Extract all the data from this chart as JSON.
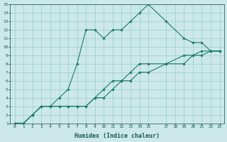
{
  "xlabel": "Humidex (Indice chaleur)",
  "bg_color": "#cce8e8",
  "grid_color": "#99cccc",
  "line_color": "#1a7a6a",
  "xlim": [
    -0.5,
    23.5
  ],
  "ylim": [
    1,
    15
  ],
  "xticks": [
    0,
    1,
    2,
    3,
    4,
    5,
    6,
    7,
    8,
    9,
    10,
    11,
    12,
    13,
    14,
    15,
    17,
    18,
    19,
    20,
    21,
    22,
    23
  ],
  "yticks": [
    1,
    2,
    3,
    4,
    5,
    6,
    7,
    8,
    9,
    10,
    11,
    12,
    13,
    14,
    15
  ],
  "line1_x": [
    0,
    1,
    2,
    3,
    4,
    5,
    6,
    7,
    8,
    9,
    10,
    11,
    12,
    13,
    14,
    15,
    17,
    19,
    20,
    21,
    22,
    23
  ],
  "line1_y": [
    1,
    1,
    2,
    3,
    3,
    4,
    5,
    8,
    12,
    12,
    11,
    12,
    12,
    13,
    14,
    15,
    13,
    11,
    10.5,
    10.5,
    9.5,
    9.5
  ],
  "line2_x": [
    0,
    1,
    2,
    3,
    4,
    5,
    6,
    7,
    8,
    9,
    10,
    11,
    12,
    13,
    14,
    15,
    17,
    19,
    20,
    21,
    22,
    23
  ],
  "line2_y": [
    1,
    1,
    2,
    3,
    3,
    3,
    3,
    3,
    3,
    4,
    5,
    6,
    6,
    7,
    8,
    8,
    8,
    9,
    9,
    9.5,
    9.5,
    9.5
  ],
  "line3_x": [
    0,
    1,
    2,
    3,
    4,
    5,
    6,
    7,
    8,
    9,
    10,
    11,
    12,
    13,
    14,
    15,
    17,
    19,
    20,
    21,
    22,
    23
  ],
  "line3_y": [
    1,
    1,
    2,
    3,
    3,
    3,
    3,
    3,
    3,
    4,
    4,
    5,
    6,
    6,
    7,
    7,
    8,
    8,
    9,
    9,
    9.5,
    9.5
  ]
}
